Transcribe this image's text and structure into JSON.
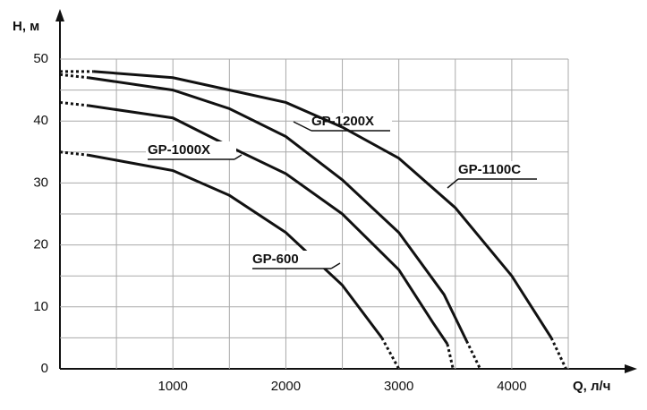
{
  "chart_data": {
    "type": "line",
    "x_label": "Q, л/ч",
    "y_label": "H, м",
    "xlim": [
      0,
      4500
    ],
    "ylim": [
      0,
      50
    ],
    "xticks": [
      1000,
      2000,
      3000,
      4000
    ],
    "yticks": [
      0,
      10,
      20,
      30,
      40,
      50
    ],
    "x_gridlines": [
      500,
      1000,
      1500,
      2000,
      2500,
      3000,
      3500,
      4000,
      4500
    ],
    "y_gridlines": [
      5,
      10,
      15,
      20,
      25,
      30,
      35,
      40,
      45,
      50
    ],
    "grid": true,
    "dotted_ends": true,
    "color": "#111111",
    "series": [
      {
        "name": "GP-600",
        "x": [
          0,
          250,
          1000,
          1500,
          2000,
          2500,
          2850,
          3000
        ],
        "values": [
          35,
          34.5,
          32,
          28,
          22,
          13.5,
          5,
          0
        ]
      },
      {
        "name": "GP-1000X",
        "x": [
          0,
          250,
          1000,
          1600,
          2000,
          2500,
          3000,
          3300,
          3430,
          3480
        ],
        "values": [
          43,
          42.5,
          40.5,
          35,
          31.5,
          25,
          16,
          7.5,
          4,
          0
        ]
      },
      {
        "name": "GP-1200X",
        "x": [
          0,
          250,
          1000,
          1500,
          2000,
          2500,
          3000,
          3400,
          3600,
          3720
        ],
        "values": [
          47.5,
          47,
          45,
          42,
          37.5,
          30.5,
          22,
          12,
          4.5,
          0
        ]
      },
      {
        "name": "GP-1100C",
        "x": [
          0,
          300,
          1000,
          2000,
          2500,
          3000,
          3500,
          4000,
          4350,
          4480
        ],
        "values": [
          48,
          48,
          47,
          43,
          39,
          34,
          26,
          15,
          5,
          0
        ]
      }
    ]
  }
}
